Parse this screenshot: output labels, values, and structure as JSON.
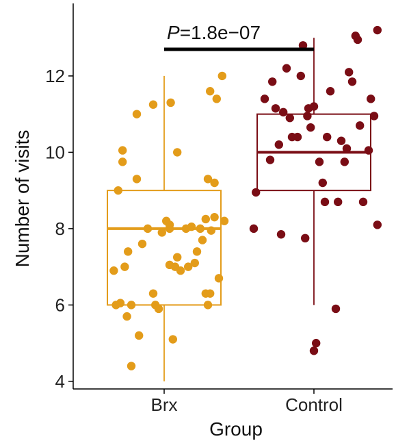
{
  "chart_data": {
    "type": "boxplot",
    "xlabel": "Group",
    "ylabel": "Number of visits",
    "ylim": [
      3.8,
      13.9
    ],
    "yticks": [
      4,
      6,
      8,
      10,
      12
    ],
    "categories": [
      "Brx",
      "Control"
    ],
    "annotation": {
      "p_label": "P",
      "p_text": "=1.8e−07"
    },
    "colors": {
      "Brx": "#E39C1A",
      "Control": "#7A0D15",
      "bracket": "#000000"
    },
    "series": [
      {
        "name": "Brx",
        "box": {
          "whisker_low": 4.0,
          "q1": 6.0,
          "median": 8.0,
          "q3": 9.0,
          "whisker_high": 12.0
        },
        "points": [
          [
            -0.46,
            6.9
          ],
          [
            -0.44,
            6.0
          ],
          [
            -0.42,
            9.0
          ],
          [
            -0.4,
            6.05
          ],
          [
            -0.38,
            10.05
          ],
          [
            -0.38,
            9.75
          ],
          [
            -0.36,
            7.0
          ],
          [
            -0.34,
            5.7
          ],
          [
            -0.33,
            7.4
          ],
          [
            -0.3,
            6.0
          ],
          [
            -0.3,
            4.4
          ],
          [
            -0.25,
            9.3
          ],
          [
            -0.25,
            11.0
          ],
          [
            -0.23,
            5.2
          ],
          [
            -0.2,
            7.6
          ],
          [
            -0.15,
            8.0
          ],
          [
            -0.1,
            6.3
          ],
          [
            -0.08,
            6.0
          ],
          [
            -0.05,
            5.9
          ],
          [
            0.05,
            8.0
          ],
          [
            -0.1,
            11.25
          ],
          [
            -0.02,
            7.9
          ],
          [
            0.02,
            8.2
          ],
          [
            0.05,
            7.05
          ],
          [
            0.06,
            11.3
          ],
          [
            0.05,
            8.1
          ],
          [
            0.08,
            5.1
          ],
          [
            0.1,
            7.0
          ],
          [
            0.12,
            10.0
          ],
          [
            0.12,
            7.25
          ],
          [
            0.15,
            6.9
          ],
          [
            0.2,
            8.0
          ],
          [
            0.22,
            7.0
          ],
          [
            0.25,
            8.05
          ],
          [
            0.28,
            7.1
          ],
          [
            0.3,
            7.4
          ],
          [
            0.33,
            8.0
          ],
          [
            0.35,
            7.7
          ],
          [
            0.38,
            8.25
          ],
          [
            0.38,
            6.3
          ],
          [
            0.4,
            6.0
          ],
          [
            0.4,
            9.3
          ],
          [
            0.42,
            6.3
          ],
          [
            0.42,
            11.6
          ],
          [
            0.43,
            7.95
          ],
          [
            0.46,
            9.2
          ],
          [
            0.46,
            8.3
          ],
          [
            0.48,
            11.4
          ],
          [
            0.5,
            6.7
          ],
          [
            0.53,
            12.0
          ],
          [
            0.55,
            8.2
          ]
        ]
      },
      {
        "name": "Control",
        "box": {
          "whisker_low": 6.0,
          "q1": 9.0,
          "median": 10.0,
          "q3": 11.0,
          "whisker_high": 13.0
        },
        "points": [
          [
            -0.55,
            8.0
          ],
          [
            -0.53,
            8.95
          ],
          [
            -0.45,
            11.4
          ],
          [
            -0.4,
            9.8
          ],
          [
            -0.38,
            11.85
          ],
          [
            -0.35,
            11.15
          ],
          [
            -0.32,
            10.2
          ],
          [
            -0.3,
            7.85
          ],
          [
            -0.28,
            11.05
          ],
          [
            -0.25,
            12.2
          ],
          [
            -0.22,
            10.9
          ],
          [
            -0.2,
            10.4
          ],
          [
            -0.15,
            10.4
          ],
          [
            -0.12,
            12.0
          ],
          [
            -0.1,
            12.8
          ],
          [
            -0.08,
            7.75
          ],
          [
            -0.06,
            10.95
          ],
          [
            -0.05,
            11.15
          ],
          [
            -0.03,
            10.65
          ],
          [
            0.0,
            11.2
          ],
          [
            0.0,
            4.8
          ],
          [
            0.02,
            5.0
          ],
          [
            0.05,
            9.75
          ],
          [
            0.08,
            9.2
          ],
          [
            0.1,
            8.7
          ],
          [
            0.12,
            10.4
          ],
          [
            0.15,
            11.6
          ],
          [
            0.2,
            5.9
          ],
          [
            0.22,
            8.7
          ],
          [
            0.25,
            10.3
          ],
          [
            0.28,
            9.75
          ],
          [
            0.3,
            10.1
          ],
          [
            0.32,
            12.1
          ],
          [
            0.35,
            11.85
          ],
          [
            0.38,
            13.05
          ],
          [
            0.4,
            12.95
          ],
          [
            0.42,
            10.7
          ],
          [
            0.45,
            8.7
          ],
          [
            0.5,
            10.05
          ],
          [
            0.52,
            11.4
          ],
          [
            0.55,
            10.95
          ],
          [
            0.58,
            13.2
          ],
          [
            0.58,
            8.1
          ]
        ]
      }
    ]
  }
}
